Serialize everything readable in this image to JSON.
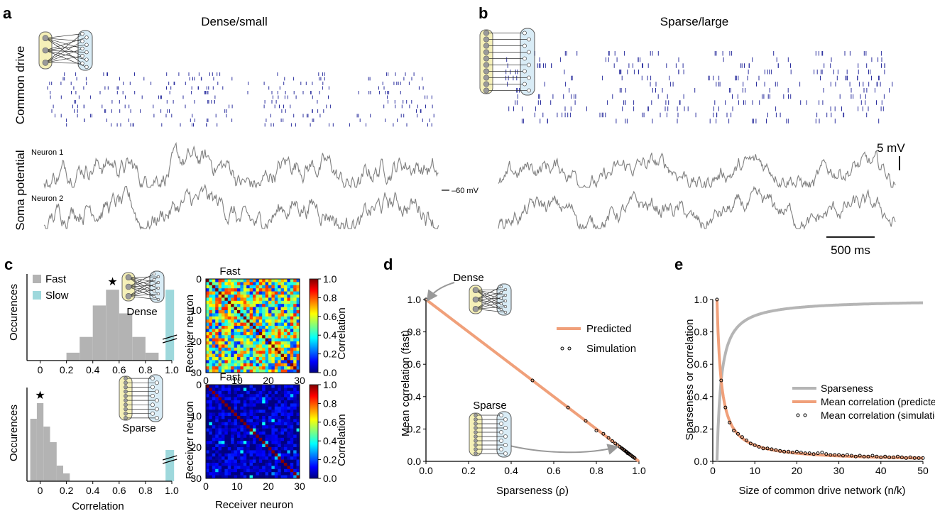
{
  "panels": {
    "a": {
      "label": "a",
      "title": "Dense/small",
      "row1_label": "Common drive",
      "row2_label": "Soma potential",
      "neuron1_label": "Neuron 1",
      "neuron2_label": "Neuron 2",
      "baseline_label": "–60 mV"
    },
    "b": {
      "label": "b",
      "title": "Sparse/large",
      "scale_v_label": "5 mV",
      "scale_t_label": "500 ms"
    },
    "c": {
      "label": "c",
      "hist_ylabel": "Occurences",
      "hist_xlabel": "Correlation",
      "legend_fast": "Fast",
      "legend_slow": "Slow",
      "dense_label": "Dense",
      "sparse_label": "Sparse",
      "hist_xticks": [
        "0",
        "0.2",
        "0.4",
        "0.6",
        "0.8",
        "1.0"
      ],
      "mat_title_top": "Fast",
      "mat_title_bottom": "Fast",
      "mat_ylabel": "Receiver neuron",
      "mat_xlabel": "Receiver neuron",
      "mat_ticks": [
        "0",
        "10",
        "20",
        "30"
      ],
      "cbar_label": "Correlation",
      "cbar_ticks": [
        "1.0",
        "0.8",
        "0.6",
        "0.4",
        "0.2",
        "0.0"
      ],
      "star": "★"
    },
    "d": {
      "label": "d",
      "dense_label": "Dense",
      "sparse_label": "Sparse",
      "ylabel": "Mean correlation (fast)",
      "xlabel": "Sparseness (ρ)",
      "legend_predicted": "Predicted",
      "legend_simulation": "Simulation",
      "xticks": [
        "0.0",
        "0.2",
        "0.4",
        "0.6",
        "0.8",
        "1.0"
      ],
      "yticks": [
        "0.0",
        "0.2",
        "0.4",
        "0.6",
        "0.8",
        "1.0"
      ]
    },
    "e": {
      "label": "e",
      "ylabel": "Sparseness  or  correlation",
      "xlabel": "Size of common drive network (n/k)",
      "legend_sparseness": "Sparseness",
      "legend_predicted": "Mean correlation (predicted)",
      "legend_simulation": "Mean correlation (simulation)",
      "xticks": [
        "0",
        "10",
        "20",
        "30",
        "40",
        "50"
      ],
      "yticks": [
        "0.0",
        "0.2",
        "0.4",
        "0.6",
        "0.8",
        "1.0"
      ]
    }
  },
  "colors": {
    "raster": "#2b2f9e",
    "trace": "#808080",
    "predicted": "#f0a07a",
    "sparseness": "#b5b5b5",
    "hist_fast": "#b3b3b3",
    "hist_slow": "#9ed8dc",
    "sender_fill": "#f5f0b8",
    "receiver_fill": "#d9ecf6"
  },
  "chart_data": [
    {
      "id": "c-hist-dense",
      "type": "bar",
      "xlabel": "Correlation",
      "ylabel": "Occurences",
      "xlim": [
        -0.1,
        1.0
      ],
      "bin_centers": [
        0.25,
        0.35,
        0.45,
        0.55,
        0.65,
        0.75,
        0.85
      ],
      "series": [
        {
          "name": "Fast",
          "values": [
            1,
            3,
            7,
            9,
            6,
            3,
            1
          ]
        },
        {
          "name": "Slow",
          "values": [
            9
          ]
        }
      ]
    },
    {
      "id": "c-hist-sparse",
      "type": "bar",
      "xlabel": "Correlation",
      "ylabel": "Occurences",
      "xlim": [
        -0.1,
        1.0
      ],
      "bin_centers": [
        -0.05,
        0.0,
        0.05,
        0.1,
        0.15,
        0.2
      ],
      "series": [
        {
          "name": "Fast",
          "values": [
            8,
            10,
            7,
            5,
            2,
            1
          ]
        },
        {
          "name": "Slow",
          "values": [
            4
          ]
        }
      ]
    },
    {
      "id": "c-matrix-dense",
      "type": "heatmap",
      "title": "Fast",
      "xlabel": "Receiver neuron",
      "ylabel": "Receiver neuron",
      "size": 30,
      "diagonal": 1.0,
      "mean_offdiag": 0.5,
      "zlim": [
        0,
        1
      ],
      "zlabel": "Correlation"
    },
    {
      "id": "c-matrix-sparse",
      "type": "heatmap",
      "title": "Fast",
      "xlabel": "Receiver neuron",
      "ylabel": "Receiver neuron",
      "size": 30,
      "diagonal": 1.0,
      "mean_offdiag": 0.05,
      "zlim": [
        0,
        1
      ],
      "zlabel": "Correlation"
    },
    {
      "id": "d-line",
      "type": "line",
      "xlabel": "Sparseness (ρ)",
      "ylabel": "Mean correlation (fast)",
      "xlim": [
        0,
        1
      ],
      "ylim": [
        0,
        1
      ],
      "series": [
        {
          "name": "Predicted",
          "x": [
            0,
            1
          ],
          "y": [
            1,
            0
          ]
        },
        {
          "name": "Simulation",
          "type": "scatter",
          "x": [
            0,
            0.5,
            0.667,
            0.75,
            0.8,
            0.833,
            0.857,
            0.875,
            0.889,
            0.9,
            0.91,
            0.917,
            0.923,
            0.929,
            0.933,
            0.938,
            0.941,
            0.944,
            0.947,
            0.95,
            0.955,
            0.96,
            0.965,
            0.97,
            0.975,
            0.98
          ],
          "y": [
            1,
            0.5,
            0.333,
            0.25,
            0.19,
            0.17,
            0.145,
            0.125,
            0.11,
            0.1,
            0.09,
            0.083,
            0.077,
            0.071,
            0.067,
            0.062,
            0.059,
            0.056,
            0.05,
            0.05,
            0.045,
            0.04,
            0.035,
            0.03,
            0.025,
            0.02
          ]
        }
      ]
    },
    {
      "id": "e-line",
      "type": "line",
      "xlabel": "Size of common drive network (n/k)",
      "ylabel": "Sparseness  or  correlation",
      "xlim": [
        0,
        50
      ],
      "ylim": [
        0,
        1
      ],
      "series": [
        {
          "name": "Sparseness",
          "x": [
            1,
            2,
            3,
            4,
            5,
            7,
            10,
            15,
            20,
            30,
            40,
            50
          ],
          "y": [
            0,
            0.5,
            0.667,
            0.75,
            0.8,
            0.857,
            0.9,
            0.933,
            0.95,
            0.967,
            0.975,
            0.98
          ]
        },
        {
          "name": "Mean correlation (predicted)",
          "x": [
            1,
            2,
            3,
            4,
            5,
            7,
            10,
            15,
            20,
            30,
            40,
            50
          ],
          "y": [
            1,
            0.5,
            0.333,
            0.25,
            0.2,
            0.143,
            0.1,
            0.067,
            0.05,
            0.033,
            0.025,
            0.02
          ]
        },
        {
          "name": "Mean correlation (simulation)",
          "type": "scatter",
          "x": [
            1,
            2,
            3,
            4,
            5,
            6,
            7,
            8,
            9,
            10,
            11,
            12,
            13,
            14,
            15,
            16,
            17,
            18,
            19,
            20,
            21,
            22,
            23,
            24,
            25,
            26,
            27,
            28,
            29,
            30,
            31,
            32,
            33,
            34,
            35,
            36,
            37,
            38,
            39,
            40,
            41,
            42,
            43,
            44,
            45,
            46,
            47,
            48,
            49,
            50
          ],
          "y": [
            1,
            0.5,
            0.333,
            0.24,
            0.19,
            0.17,
            0.15,
            0.13,
            0.11,
            0.1,
            0.09,
            0.08,
            0.08,
            0.075,
            0.07,
            0.065,
            0.06,
            0.06,
            0.055,
            0.06,
            0.055,
            0.05,
            0.05,
            0.045,
            0.05,
            0.055,
            0.045,
            0.04,
            0.04,
            0.04,
            0.035,
            0.04,
            0.035,
            0.03,
            0.035,
            0.03,
            0.03,
            0.035,
            0.03,
            0.025,
            0.03,
            0.025,
            0.025,
            0.03,
            0.025,
            0.02,
            0.025,
            0.02,
            0.02,
            0.02
          ]
        }
      ]
    }
  ]
}
